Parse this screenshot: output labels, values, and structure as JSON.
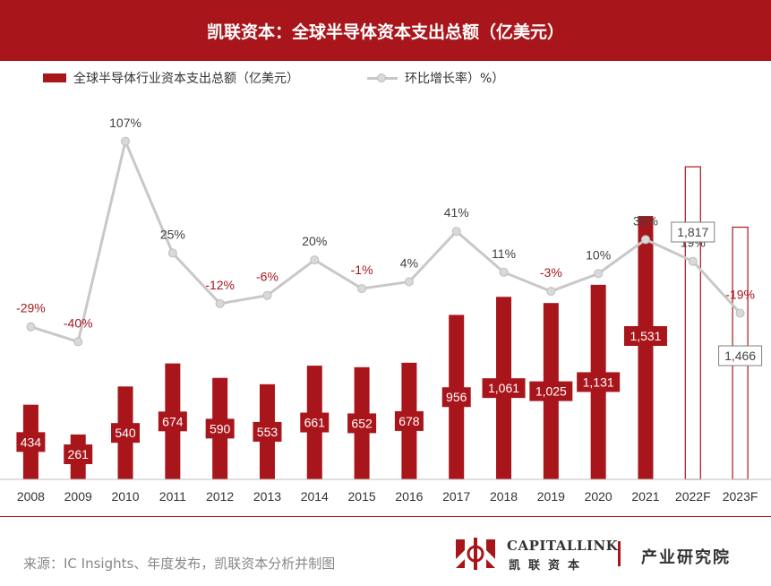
{
  "header": {
    "title": "凯联资本：全球半导体资本支出总额（亿美元）"
  },
  "legend": {
    "bar_label": "全球半导体行业资本支出总额（亿美元）",
    "line_label": "环比增长率）%）"
  },
  "footer": {
    "source": "来源：IC Insights、年度发布，凯联资本分析并制图",
    "logo_en": "CAPITALLINK",
    "logo_cn": "凯联资本",
    "institute": "产业研究院"
  },
  "colors": {
    "bar": "#a8161c",
    "line": "#c8c8c8",
    "marker": "#d9d9d9",
    "negative_label": "#a8161c",
    "positive_label": "#404040"
  },
  "chart_data": {
    "type": "bar",
    "categories": [
      "2008",
      "2009",
      "2010",
      "2011",
      "2012",
      "2013",
      "2014",
      "2015",
      "2016",
      "2017",
      "2018",
      "2019",
      "2020",
      "2021",
      "2022F",
      "2023F"
    ],
    "series": [
      {
        "name": "全球半导体行业资本支出总额（亿美元）",
        "type": "bar",
        "values": [
          434,
          261,
          540,
          674,
          590,
          553,
          661,
          652,
          678,
          956,
          1061,
          1025,
          1131,
          1531,
          1817,
          1466
        ],
        "labels": [
          "434",
          "261",
          "540",
          "674",
          "590",
          "553",
          "661",
          "652",
          "678",
          "956",
          "1,061",
          "1,025",
          "1,131",
          "1,531",
          "1,817",
          "1,466"
        ],
        "forecast": [
          false,
          false,
          false,
          false,
          false,
          false,
          false,
          false,
          false,
          false,
          false,
          false,
          false,
          false,
          true,
          true
        ]
      },
      {
        "name": "环比增长率）%）",
        "type": "line",
        "values": [
          -29,
          -40,
          107,
          25,
          -12,
          -6,
          20,
          -1,
          4,
          41,
          11,
          -3,
          10,
          35,
          19,
          -19
        ],
        "labels": [
          "-29%",
          "-40%",
          "107%",
          "25%",
          "-12%",
          "-6%",
          "20%",
          "-1%",
          "4%",
          "41%",
          "11%",
          "-3%",
          "10%",
          "35%",
          "19%",
          "-19%"
        ]
      }
    ],
    "ylim": [
      0,
      2000
    ],
    "y2lim": [
      -160,
      120
    ],
    "grid": false,
    "legend": "top-left"
  }
}
